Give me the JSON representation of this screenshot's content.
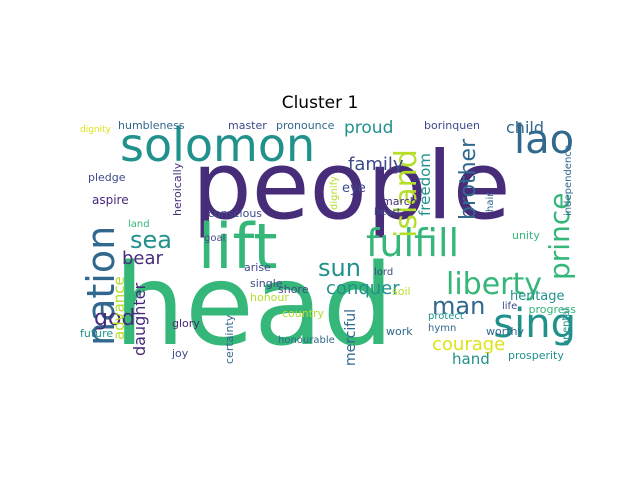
{
  "title": "Cluster 1",
  "palette": {
    "purple_dark": "#472c7a",
    "purple": "#482878",
    "teal": "#21918c",
    "blue": "#31688e",
    "green": "#35b779",
    "lime": "#b5de2b",
    "yellow": "#dde318",
    "slate": "#3e4a89"
  },
  "words": [
    {
      "text": "people",
      "color": "#472c7a"
    },
    {
      "text": "head",
      "color": "#35b779"
    },
    {
      "text": "lift",
      "color": "#35b779"
    },
    {
      "text": "solomon",
      "color": "#21918c"
    },
    {
      "text": "nation",
      "color": "#31688e"
    },
    {
      "text": "sing",
      "color": "#21918c"
    },
    {
      "text": "fulfill",
      "color": "#35b779"
    },
    {
      "text": "lao",
      "color": "#31688e"
    },
    {
      "text": "liberty",
      "color": "#35b779"
    },
    {
      "text": "prince",
      "color": "#35b779"
    },
    {
      "text": "island",
      "color": "#b5de2b"
    },
    {
      "text": "brother",
      "color": "#31688e"
    },
    {
      "text": "sea",
      "color": "#21918c"
    },
    {
      "text": "bear",
      "color": "#472c7a"
    },
    {
      "text": "sun",
      "color": "#21918c"
    },
    {
      "text": "man",
      "color": "#31688e"
    },
    {
      "text": "courage",
      "color": "#dde318"
    },
    {
      "text": "god",
      "color": "#472c7a"
    },
    {
      "text": "conquer",
      "color": "#21918c"
    },
    {
      "text": "family",
      "color": "#3e4a89"
    },
    {
      "text": "proud",
      "color": "#21918c"
    },
    {
      "text": "child",
      "color": "#31688e"
    },
    {
      "text": "freedom",
      "color": "#21918c"
    },
    {
      "text": "daughter",
      "color": "#482878"
    },
    {
      "text": "advance",
      "color": "#b5de2b"
    },
    {
      "text": "hand",
      "color": "#21918c"
    },
    {
      "text": "merciful",
      "color": "#31688e"
    },
    {
      "text": "heritage",
      "color": "#21918c"
    },
    {
      "text": "pronounce",
      "color": "#31688e"
    },
    {
      "text": "master",
      "color": "#3e4a89"
    },
    {
      "text": "humbleness",
      "color": "#31688e"
    },
    {
      "text": "borinquen",
      "color": "#3e4a89"
    },
    {
      "text": "dignity",
      "color": "#dde318"
    },
    {
      "text": "pledge",
      "color": "#3e4a89"
    },
    {
      "text": "aspire",
      "color": "#482878"
    },
    {
      "text": "future",
      "color": "#21918c"
    },
    {
      "text": "glory",
      "color": "#482878"
    },
    {
      "text": "joy",
      "color": "#3e4a89"
    },
    {
      "text": "certainty",
      "color": "#31688e"
    },
    {
      "text": "honourable",
      "color": "#31688e"
    },
    {
      "text": "country",
      "color": "#b5de2b"
    },
    {
      "text": "work",
      "color": "#31688e"
    },
    {
      "text": "hymn",
      "color": "#31688e"
    },
    {
      "text": "protect",
      "color": "#21918c"
    },
    {
      "text": "life",
      "color": "#3e4a89"
    },
    {
      "text": "worthy",
      "color": "#31688e"
    },
    {
      "text": "progress",
      "color": "#35b779"
    },
    {
      "text": "prosperity",
      "color": "#21918c"
    },
    {
      "text": "oriental",
      "color": "#21918c"
    },
    {
      "text": "independence",
      "color": "#31688e"
    },
    {
      "text": "unity",
      "color": "#35b779"
    },
    {
      "text": "hair",
      "color": "#31688e"
    },
    {
      "text": "eye",
      "color": "#3e4a89"
    },
    {
      "text": "march",
      "color": "#472c7a"
    },
    {
      "text": "heart",
      "color": "#3e4a89"
    },
    {
      "text": "dignify",
      "color": "#b5de2b"
    },
    {
      "text": "heroically",
      "color": "#472c7a"
    },
    {
      "text": "land",
      "color": "#35b779"
    },
    {
      "text": "conscious",
      "color": "#3e4a89"
    },
    {
      "text": "goal",
      "color": "#3e4a89"
    },
    {
      "text": "arise",
      "color": "#3e4a89"
    },
    {
      "text": "single",
      "color": "#3e4a89"
    },
    {
      "text": "honour",
      "color": "#b5de2b"
    },
    {
      "text": "shore",
      "color": "#3e4a89"
    },
    {
      "text": "lord",
      "color": "#3e4a89"
    },
    {
      "text": "soil",
      "color": "#b5de2b"
    }
  ]
}
